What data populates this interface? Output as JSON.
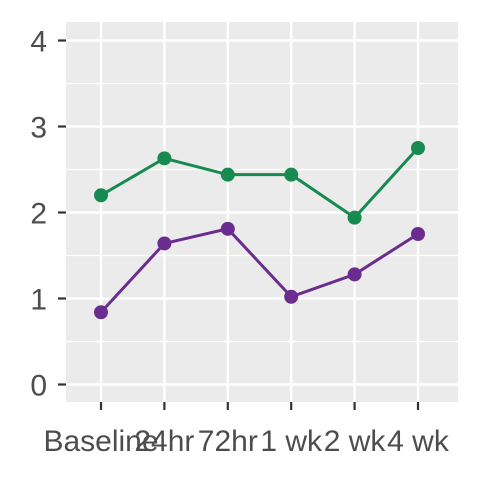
{
  "chart_data": {
    "type": "line",
    "categories": [
      "Baseline",
      "24hr",
      "72hr",
      "1 wk",
      "2 wk",
      "4 wk"
    ],
    "series": [
      {
        "color": "#178a4f",
        "values": [
          2.2,
          2.63,
          2.44,
          2.44,
          1.94,
          2.75
        ]
      },
      {
        "color": "#6a2d8f",
        "values": [
          0.84,
          1.64,
          1.81,
          1.02,
          1.28,
          1.75
        ]
      }
    ],
    "title": "",
    "xlabel": "",
    "ylabel": "",
    "ylim": [
      0,
      4
    ],
    "yticks": [
      "0",
      "1",
      "2",
      "3",
      "4"
    ],
    "grid": true,
    "panel_background": "#ebebeb",
    "grid_color": "#ffffff"
  }
}
